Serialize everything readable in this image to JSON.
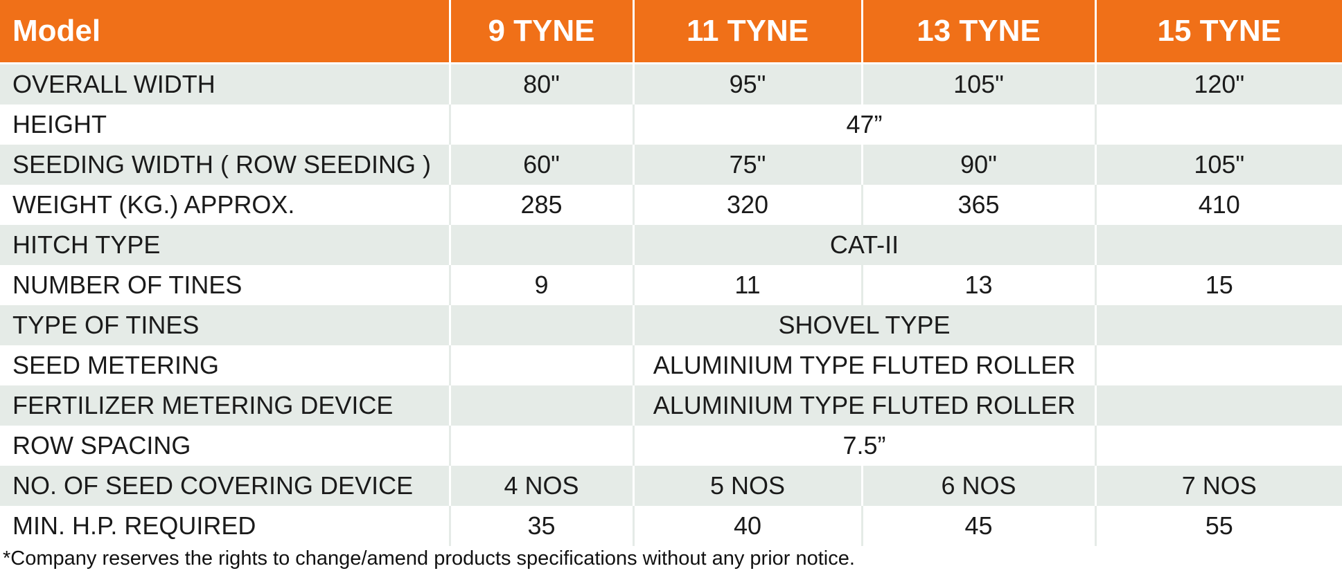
{
  "table": {
    "header": [
      "Model",
      "9 TYNE",
      "11 TYNE",
      "13 TYNE",
      "15 TYNE"
    ],
    "rows": [
      [
        "OVERALL WIDTH",
        "80\"",
        "95\"",
        "105\"",
        "120\""
      ],
      [
        "HEIGHT",
        "47”"
      ],
      [
        "SEEDING WIDTH ( ROW SEEDING )",
        "60\"",
        "75\"",
        "90\"",
        "105\""
      ],
      [
        "WEIGHT (KG.) APPROX.",
        "285",
        "320",
        "365",
        "410"
      ],
      [
        "HITCH TYPE",
        "CAT-II"
      ],
      [
        "NUMBER OF TINES",
        "9",
        "11",
        "13",
        "15"
      ],
      [
        "TYPE OF TINES",
        "SHOVEL TYPE"
      ],
      [
        "SEED METERING",
        "ALUMINIUM TYPE FLUTED ROLLER"
      ],
      [
        "FERTILIZER METERING DEVICE",
        "ALUMINIUM TYPE FLUTED ROLLER"
      ],
      [
        "ROW SPACING",
        "7.5”"
      ],
      [
        "NO. OF SEED COVERING DEVICE",
        "4 NOS",
        "5 NOS",
        "6 NOS",
        "7 NOS"
      ],
      [
        "MIN. H.P. REQUIRED",
        "35",
        "40",
        "45",
        "55"
      ]
    ]
  },
  "footnote": "*Company reserves the rights to change/amend products specifications without any prior notice."
}
